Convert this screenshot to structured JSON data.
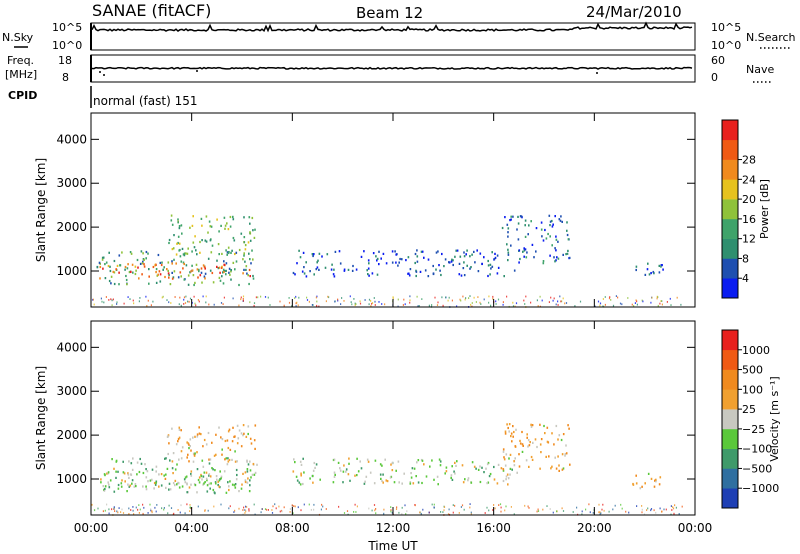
{
  "header": {
    "station": "SANAE (fitACF)",
    "beam": "Beam 12",
    "date": "24/Mar/2010"
  },
  "panels": {
    "nsky": {
      "left_label": "N.Sky",
      "left_ticks": [
        "10^5",
        "10^0"
      ],
      "right_label": "N.Search",
      "right_ticks": [
        "10^5",
        "10^0"
      ]
    },
    "freq": {
      "left_label_1": "Freq.",
      "left_label_2": "[MHz]",
      "left_ticks": [
        "18",
        "8"
      ],
      "right_label": "Nave",
      "right_ticks": [
        "60",
        "0"
      ]
    },
    "cpid": {
      "label": "CPID",
      "text": "normal (fast) 151"
    }
  },
  "chart_data": [
    {
      "type": "heatmap",
      "name": "power",
      "xlabel": "",
      "ylabel": "Slant Range [km]",
      "x_ticks": [
        "00:00",
        "04:00",
        "08:00",
        "12:00",
        "16:00",
        "20:00",
        "00:00"
      ],
      "y_ticks": [
        1000,
        2000,
        3000,
        4000
      ],
      "xlim": [
        0,
        24
      ],
      "ylim": [
        180,
        4600
      ],
      "colorbar": {
        "label": "Power [dB]",
        "ticks": [
          "4",
          "8",
          "12",
          "16",
          "20",
          "24",
          "28"
        ],
        "colors": [
          "#0a1cf0",
          "#1e4fb0",
          "#2f8f6f",
          "#3fa36a",
          "#8fc23a",
          "#e6c21e",
          "#f08a1e",
          "#f05a14",
          "#e8201e"
        ]
      },
      "regions": [
        {
          "x": [
            0.2,
            6.6
          ],
          "y": [
            700,
            1500
          ],
          "level": 0.35,
          "desc_band": "main-band"
        },
        {
          "x": [
            0.3,
            6.3
          ],
          "y": [
            850,
            1200
          ],
          "level": 0.8,
          "desc_band": "intense-band"
        },
        {
          "x": [
            3.0,
            6.5
          ],
          "y": [
            1400,
            2300
          ],
          "level": 0.45,
          "desc_band": "rising-arc"
        },
        {
          "x": [
            8.0,
            17.0
          ],
          "y": [
            900,
            1500
          ],
          "level": 0.15,
          "desc_band": "day-arc"
        },
        {
          "x": [
            16.3,
            19.0
          ],
          "y": [
            1200,
            2300
          ],
          "level": 0.2,
          "desc_band": "afternoon"
        },
        {
          "x": [
            21.5,
            22.8
          ],
          "y": [
            800,
            1200
          ],
          "level": 0.2,
          "desc_band": "evening"
        }
      ]
    },
    {
      "type": "heatmap",
      "name": "velocity",
      "xlabel": "Time UT",
      "ylabel": "Slant Range [km]",
      "x_ticks": [
        "00:00",
        "04:00",
        "08:00",
        "12:00",
        "16:00",
        "20:00",
        "00:00"
      ],
      "y_ticks": [
        1000,
        2000,
        3000,
        4000
      ],
      "xlim": [
        0,
        24
      ],
      "ylim": [
        180,
        4600
      ],
      "colorbar": {
        "label": "Velocity [m s⁻¹]",
        "ticks": [
          "1000",
          "500",
          "100",
          "25",
          "−25",
          "−100",
          "−500",
          "−1000"
        ],
        "colors": [
          "#1e3fb4",
          "#2f6fa0",
          "#3f9a6a",
          "#5ac83a",
          "#c8c8c0",
          "#f0a030",
          "#f08a1e",
          "#f05a14",
          "#e8201e"
        ]
      },
      "regions": [
        {
          "x": [
            0.2,
            6.6
          ],
          "y": [
            700,
            1500
          ],
          "level": 0.4,
          "desc_band": "main-band"
        },
        {
          "x": [
            0.3,
            6.3
          ],
          "y": [
            850,
            1200
          ],
          "level": 0.5,
          "desc_band": "intense-band"
        },
        {
          "x": [
            3.0,
            6.5
          ],
          "y": [
            1400,
            2300
          ],
          "level": 0.6,
          "desc_band": "rising-arc"
        },
        {
          "x": [
            8.0,
            17.0
          ],
          "y": [
            900,
            1500
          ],
          "level": 0.45,
          "desc_band": "day-arc"
        },
        {
          "x": [
            16.3,
            19.0
          ],
          "y": [
            1200,
            2300
          ],
          "level": 0.6,
          "desc_band": "afternoon"
        },
        {
          "x": [
            21.5,
            22.8
          ],
          "y": [
            800,
            1200
          ],
          "level": 0.6,
          "desc_band": "evening"
        }
      ]
    }
  ]
}
